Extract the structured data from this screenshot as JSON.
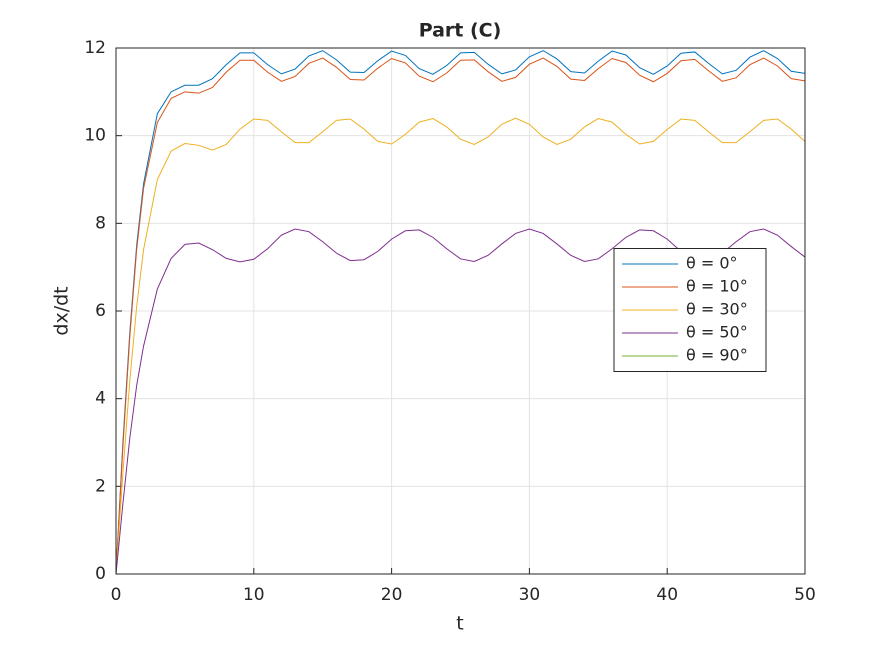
{
  "chart_data": {
    "type": "line",
    "title": "Part (C)",
    "x_label": "t",
    "y_label": "dx/dt",
    "x": [
      0,
      0.5,
      1,
      1.5,
      2,
      3,
      4,
      5,
      6,
      7,
      8,
      9,
      10,
      11,
      12,
      13,
      14,
      15,
      16,
      17,
      18,
      19,
      20,
      21,
      22,
      23,
      24,
      25,
      26,
      27,
      28,
      29,
      30,
      31,
      32,
      33,
      34,
      35,
      36,
      37,
      38,
      39,
      40,
      41,
      42,
      43,
      44,
      45,
      46,
      47,
      48,
      49,
      50
    ],
    "series": [
      {
        "name": "θ = 0°",
        "color": "#0072BD",
        "values": [
          0,
          3,
          5.5,
          7.5,
          8.9,
          10.5,
          11.0,
          11.15,
          11.15,
          11.3,
          11.62,
          11.89,
          11.89,
          11.62,
          11.41,
          11.52,
          11.82,
          11.94,
          11.73,
          11.45,
          11.44,
          11.71,
          11.93,
          11.83,
          11.53,
          11.4,
          11.6,
          11.89,
          11.9,
          11.63,
          11.41,
          11.5,
          11.8,
          11.94,
          11.75,
          11.46,
          11.43,
          11.7,
          11.93,
          11.84,
          11.55,
          11.4,
          11.59,
          11.88,
          11.91,
          11.65,
          11.41,
          11.49,
          11.79,
          11.94,
          11.76,
          11.47,
          11.42
        ]
      },
      {
        "name": "θ = 10°",
        "color": "#D95319",
        "values": [
          0,
          2.9,
          5.4,
          7.4,
          8.8,
          10.3,
          10.85,
          11.0,
          10.97,
          11.1,
          11.45,
          11.72,
          11.72,
          11.45,
          11.24,
          11.35,
          11.65,
          11.77,
          11.56,
          11.28,
          11.27,
          11.54,
          11.76,
          11.66,
          11.36,
          11.23,
          11.43,
          11.72,
          11.73,
          11.46,
          11.24,
          11.33,
          11.63,
          11.77,
          11.58,
          11.29,
          11.26,
          11.53,
          11.76,
          11.67,
          11.38,
          11.23,
          11.42,
          11.71,
          11.74,
          11.48,
          11.24,
          11.32,
          11.62,
          11.77,
          11.59,
          11.3,
          11.25
        ]
      },
      {
        "name": "θ = 30°",
        "color": "#EDB120",
        "values": [
          0,
          2.3,
          4.4,
          6.1,
          7.4,
          9.0,
          9.65,
          9.82,
          9.78,
          9.67,
          9.8,
          10.15,
          10.38,
          10.35,
          10.09,
          9.84,
          9.84,
          10.09,
          10.35,
          10.38,
          10.15,
          9.87,
          9.81,
          10.03,
          10.31,
          10.39,
          10.2,
          9.92,
          9.8,
          9.97,
          10.26,
          10.4,
          10.26,
          9.97,
          9.8,
          9.92,
          10.2,
          10.39,
          10.31,
          10.03,
          9.81,
          9.87,
          10.14,
          10.38,
          10.35,
          10.09,
          9.84,
          9.84,
          10.09,
          10.35,
          10.38,
          10.15,
          9.87
        ]
      },
      {
        "name": "θ = 50°",
        "color": "#7E2F8E",
        "values": [
          0,
          1.6,
          3.1,
          4.3,
          5.2,
          6.5,
          7.2,
          7.52,
          7.55,
          7.4,
          7.2,
          7.12,
          7.18,
          7.42,
          7.73,
          7.87,
          7.81,
          7.58,
          7.32,
          7.15,
          7.17,
          7.36,
          7.64,
          7.83,
          7.85,
          7.68,
          7.42,
          7.19,
          7.13,
          7.27,
          7.53,
          7.77,
          7.87,
          7.77,
          7.53,
          7.27,
          7.13,
          7.19,
          7.42,
          7.68,
          7.85,
          7.83,
          7.64,
          7.36,
          7.17,
          7.15,
          7.32,
          7.58,
          7.81,
          7.87,
          7.73,
          7.47,
          7.23
        ]
      },
      {
        "name": "θ = 90°",
        "color": "#77AC30",
        "values": [
          0,
          0,
          0,
          0,
          0,
          0,
          0,
          0,
          0,
          0,
          0,
          0,
          0,
          0,
          0,
          0,
          0,
          0,
          0,
          0,
          0,
          0,
          0,
          0,
          0,
          0,
          0,
          0,
          0,
          0,
          0,
          0,
          0,
          0,
          0,
          0,
          0,
          0,
          0,
          0,
          0,
          0,
          0,
          0,
          0,
          0,
          0,
          0,
          0,
          0,
          0,
          0,
          0
        ]
      }
    ],
    "xlim": [
      0,
      50
    ],
    "xticks": [
      0,
      10,
      20,
      30,
      40,
      50
    ],
    "ylim": [
      0,
      12
    ],
    "yticks": [
      0,
      2,
      4,
      6,
      8,
      10,
      12
    ],
    "grid": true,
    "legend_location": "east"
  }
}
